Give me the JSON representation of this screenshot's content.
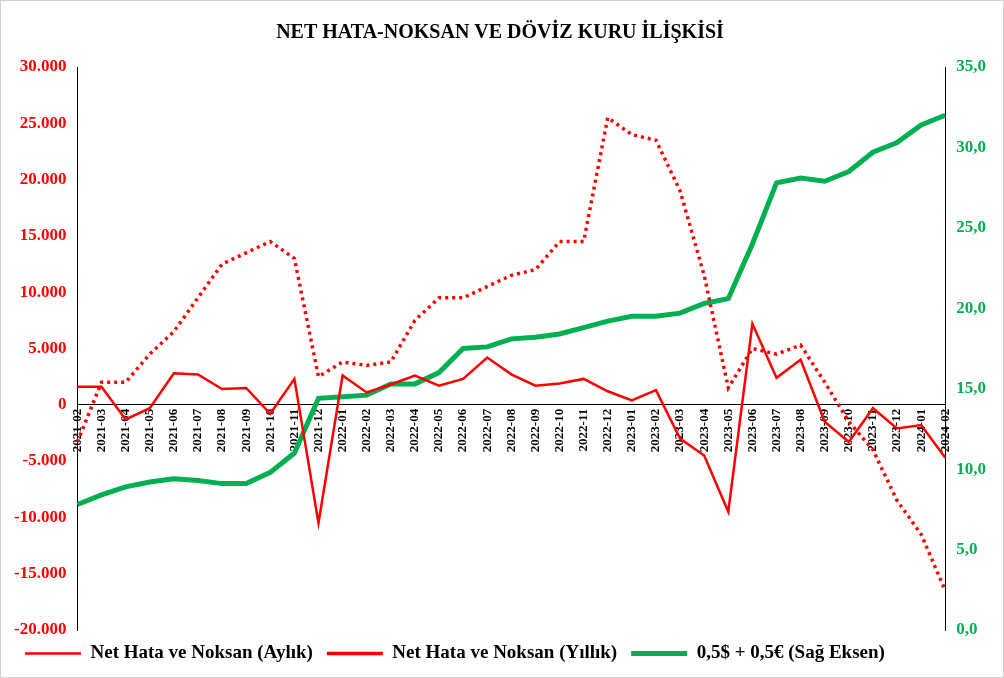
{
  "chart_data": {
    "type": "line",
    "title": "NET HATA-NOKSAN VE DÖVİZ KURU İLİŞKİSİ",
    "categories": [
      "2021-02",
      "2021-03",
      "2021-04",
      "2021-05",
      "2021-06",
      "2021-07",
      "2021-08",
      "2021-09",
      "2021-10",
      "2021-11",
      "2021-12",
      "2022-01",
      "2022-02",
      "2022-03",
      "2022-04",
      "2022-05",
      "2022-06",
      "2022-07",
      "2022-08",
      "2022-09",
      "2022-10",
      "2022-11",
      "2022-12",
      "2023-01",
      "2023-02",
      "2023-03",
      "2023-04",
      "2023-05",
      "2023-06",
      "2023-07",
      "2023-08",
      "2023-09",
      "2023-10",
      "2023-11",
      "2023-12",
      "2024-01",
      "2024-02"
    ],
    "series": [
      {
        "name": "Net Hata ve Noksan (Aylık)",
        "color": "#ff0000",
        "line_style": "solid",
        "axis": "y",
        "values": [
          1600,
          1600,
          -1300,
          -300,
          2800,
          2700,
          1400,
          1500,
          -800,
          2300,
          -10500,
          2600,
          1100,
          1800,
          2600,
          1700,
          2300,
          4200,
          2700,
          1700,
          1900,
          2300,
          1200,
          400,
          1300,
          -3000,
          -4500,
          -9500,
          7200,
          2400,
          4000,
          -1500,
          -3300,
          -300,
          -2100,
          -1800,
          -4700
        ]
      },
      {
        "name": "Net Hata ve Noksan (Yıllık)",
        "color": "#ff0000",
        "line_style": "dotted",
        "axis": "y",
        "values": [
          -3300,
          2000,
          2000,
          4500,
          6500,
          9500,
          12500,
          13500,
          14500,
          13000,
          2500,
          3800,
          3500,
          3800,
          7500,
          9500,
          9500,
          10500,
          11500,
          12000,
          14500,
          14500,
          25500,
          24000,
          23500,
          19000,
          11500,
          1500,
          5000,
          4500,
          5300,
          2000,
          -1500,
          -4000,
          -8500,
          -11500,
          -16500
        ]
      },
      {
        "name": "0,5$ + 0,5€ (Sağ Eksen)",
        "color": "#00b050",
        "line_style": "solid",
        "axis": "y2",
        "values": [
          7.8,
          8.4,
          8.9,
          9.2,
          9.4,
          9.3,
          9.1,
          9.1,
          9.8,
          11.0,
          14.4,
          14.5,
          14.6,
          15.3,
          15.3,
          16.0,
          17.5,
          17.6,
          18.1,
          18.2,
          18.4,
          18.8,
          19.2,
          19.5,
          19.5,
          19.7,
          20.3,
          20.6,
          24.0,
          27.8,
          28.1,
          27.9,
          28.5,
          29.7,
          30.3,
          31.4,
          32.0
        ]
      }
    ],
    "ylim": [
      -20000,
      30000
    ],
    "yticks": [
      {
        "value": -20000,
        "label": "-20.000"
      },
      {
        "value": -15000,
        "label": "-15.000"
      },
      {
        "value": -10000,
        "label": "-10.000"
      },
      {
        "value": -5000,
        "label": "-5.000"
      },
      0,
      {
        "value": 5000,
        "label": "5.000"
      },
      {
        "value": 10000,
        "label": "10.000"
      },
      {
        "value": 15000,
        "label": "15.000"
      },
      {
        "value": 20000,
        "label": "20.000"
      },
      {
        "value": 25000,
        "label": "25.000"
      },
      {
        "value": 30000,
        "label": "30.000"
      }
    ],
    "y2lim": [
      0,
      35
    ],
    "y2ticks": [
      {
        "value": 0,
        "label": "0,0"
      },
      {
        "value": 5,
        "label": "5,0"
      },
      {
        "value": 10,
        "label": "10,0"
      },
      {
        "value": 15,
        "label": "15,0"
      },
      {
        "value": 20,
        "label": "20,0"
      },
      {
        "value": 25,
        "label": "25,0"
      },
      {
        "value": 30,
        "label": "30,0"
      },
      {
        "value": 35,
        "label": "35,0"
      }
    ],
    "grid": false,
    "legend": "bottom"
  }
}
